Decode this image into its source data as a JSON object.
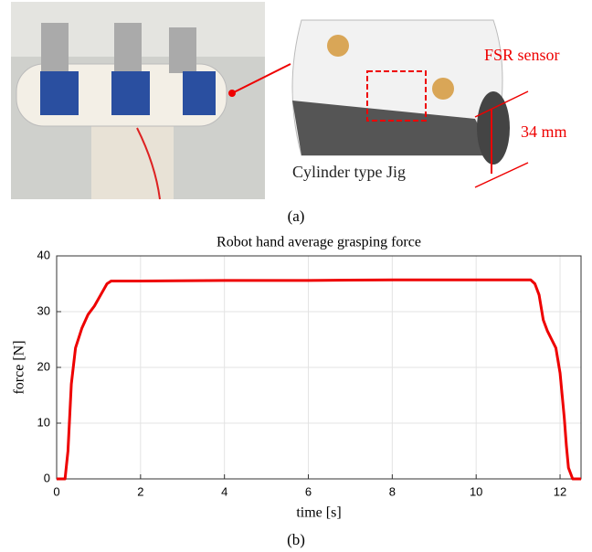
{
  "figure": {
    "panel_a": "(a)",
    "panel_b": "(b)",
    "fsr_label": "FSR sensor",
    "size_label": "34 mm",
    "jig_label": "Cylinder type Jig"
  },
  "chart_data": {
    "type": "line",
    "title": "Robot hand average grasping force",
    "x_label": "time [s]",
    "y_label": "force [N]",
    "x": [
      0,
      0.2,
      0.27,
      0.35,
      0.45,
      0.6,
      0.75,
      0.9,
      1.05,
      1.2,
      1.3,
      2,
      4,
      6,
      8,
      10,
      11.3,
      11.4,
      11.5,
      11.6,
      11.7,
      11.8,
      11.9,
      12.0,
      12.1,
      12.15,
      12.2,
      12.3,
      12.4,
      12.5
    ],
    "values": [
      0,
      0,
      5,
      17,
      23.5,
      27,
      29.5,
      31,
      33,
      35,
      35.5,
      35.5,
      35.6,
      35.6,
      35.7,
      35.7,
      35.7,
      35,
      33,
      28.5,
      26.5,
      25,
      23.5,
      19,
      11,
      6,
      2,
      0,
      0,
      0
    ],
    "color": "#ee0000",
    "xlim": [
      0,
      12.5
    ],
    "xticks": [
      0,
      2,
      4,
      6,
      8,
      10,
      12
    ],
    "ylim": [
      0,
      40
    ],
    "yticks": [
      0,
      10,
      20,
      30,
      40
    ],
    "grid": true
  }
}
